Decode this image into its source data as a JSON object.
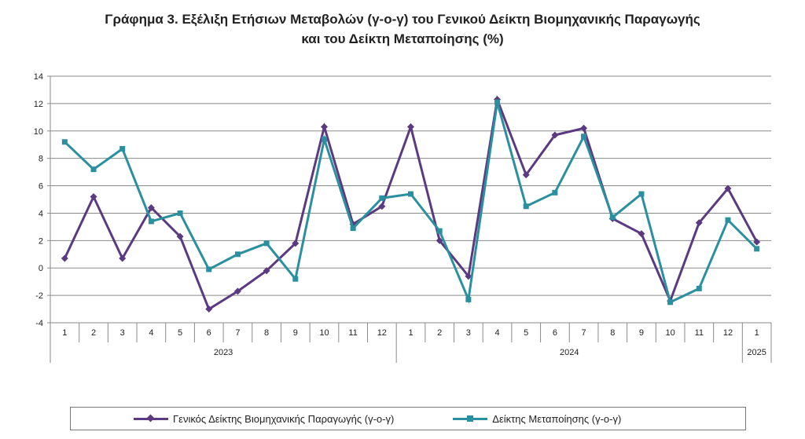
{
  "chart_data": {
    "type": "line",
    "title_line1": "Γράφημα 3. Εξέλιξη Ετήσιων Μεταβολών (γ-ο-γ) του Γενικού Δείκτη Βιομηχανικής Παραγωγής",
    "title_line2": "και του Δείκτη Μεταποίησης (%)",
    "ylim": [
      -4,
      14
    ],
    "yticks": [
      -4,
      -2,
      0,
      2,
      4,
      6,
      8,
      10,
      12,
      14
    ],
    "categories": [
      "1",
      "2",
      "3",
      "4",
      "5",
      "6",
      "7",
      "8",
      "9",
      "10",
      "11",
      "12",
      "1",
      "2",
      "3",
      "4",
      "5",
      "6",
      "7",
      "8",
      "9",
      "10",
      "11",
      "12",
      "1"
    ],
    "year_groups": [
      {
        "label": "2023",
        "count": 12
      },
      {
        "label": "2024",
        "count": 12
      },
      {
        "label": "2025",
        "count": 1
      }
    ],
    "grid": true,
    "legend_position": "bottom",
    "series": [
      {
        "name": "Γενικός Δείκτης Βιομηχανικής Παραγωγής (γ-ο-γ)",
        "color": "#5b3a82",
        "marker": "diamond",
        "values": [
          0.7,
          5.2,
          0.7,
          4.4,
          2.3,
          -3.0,
          -1.7,
          -0.2,
          1.8,
          10.3,
          3.2,
          4.5,
          10.3,
          2.0,
          -0.6,
          12.3,
          6.8,
          9.7,
          10.2,
          3.6,
          2.5,
          -2.4,
          3.3,
          5.8,
          1.9
        ]
      },
      {
        "name": "Δείκτης Μεταποίησης (γ-ο-γ)",
        "color": "#2a8f9f",
        "marker": "square",
        "values": [
          9.2,
          7.2,
          8.7,
          3.4,
          4.0,
          -0.1,
          1.0,
          1.8,
          -0.8,
          9.4,
          2.9,
          5.1,
          5.4,
          2.7,
          -2.3,
          12.1,
          4.5,
          5.5,
          9.6,
          3.7,
          5.4,
          -2.5,
          -1.5,
          3.5,
          1.4
        ]
      }
    ]
  }
}
